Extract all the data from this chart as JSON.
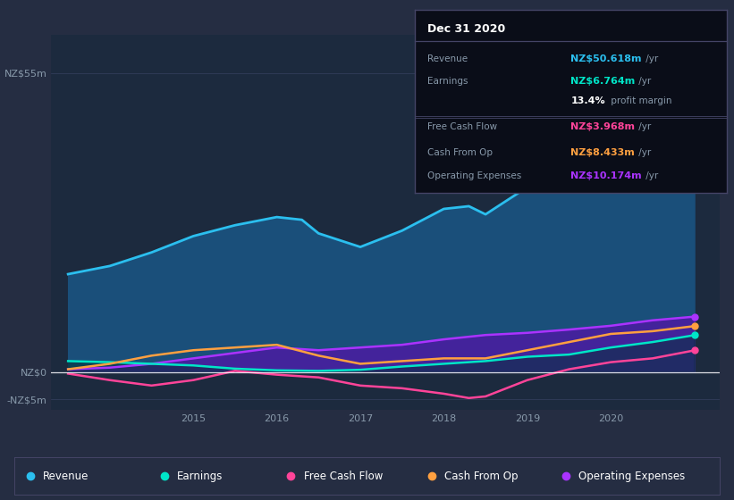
{
  "fig_bg_color": "#252d42",
  "plot_bg_color": "#1c2a3e",
  "ylim": [
    -7,
    62
  ],
  "yticks_vals": [
    -5,
    0,
    55
  ],
  "ytick_labels": [
    "-NZ$5m",
    "NZ$0",
    "NZ$55m"
  ],
  "xticks": [
    2015,
    2016,
    2017,
    2018,
    2019,
    2020
  ],
  "xlim": [
    2013.3,
    2021.3
  ],
  "revenue": {
    "color": "#2bbfef",
    "fill": "#1a4f7a",
    "x": [
      2013.5,
      2014.0,
      2014.5,
      2015.0,
      2015.5,
      2016.0,
      2016.3,
      2016.5,
      2017.0,
      2017.5,
      2018.0,
      2018.3,
      2018.5,
      2019.0,
      2019.5,
      2020.0,
      2020.5,
      2021.0
    ],
    "y": [
      18,
      19.5,
      22,
      25,
      27,
      28.5,
      28,
      25.5,
      23,
      26,
      30,
      30.5,
      29,
      34,
      39,
      44,
      47.5,
      50.6
    ]
  },
  "earnings": {
    "color": "#00e5c8",
    "x": [
      2013.5,
      2014.0,
      2014.5,
      2015.0,
      2015.5,
      2016.0,
      2016.5,
      2017.0,
      2017.5,
      2018.0,
      2018.5,
      2019.0,
      2019.5,
      2020.0,
      2020.5,
      2021.0
    ],
    "y": [
      2.0,
      1.8,
      1.5,
      1.2,
      0.6,
      0.3,
      0.2,
      0.4,
      1.0,
      1.5,
      2.0,
      2.8,
      3.2,
      4.5,
      5.5,
      6.764
    ]
  },
  "free_cash_flow": {
    "color": "#ff4499",
    "x": [
      2013.5,
      2014.0,
      2014.5,
      2015.0,
      2015.5,
      2016.0,
      2016.5,
      2017.0,
      2017.5,
      2018.0,
      2018.3,
      2018.5,
      2019.0,
      2019.5,
      2020.0,
      2020.5,
      2021.0
    ],
    "y": [
      -0.3,
      -1.5,
      -2.5,
      -1.5,
      0.2,
      -0.5,
      -1.0,
      -2.5,
      -3.0,
      -4.0,
      -4.8,
      -4.5,
      -1.5,
      0.5,
      1.8,
      2.5,
      3.968
    ]
  },
  "cash_from_op": {
    "color": "#ffa040",
    "x": [
      2013.5,
      2014.0,
      2014.5,
      2015.0,
      2015.5,
      2016.0,
      2016.5,
      2017.0,
      2017.5,
      2018.0,
      2018.5,
      2019.0,
      2019.5,
      2020.0,
      2020.5,
      2021.0
    ],
    "y": [
      0.5,
      1.5,
      3.0,
      4.0,
      4.5,
      5.0,
      3.0,
      1.5,
      2.0,
      2.5,
      2.5,
      4.0,
      5.5,
      7.0,
      7.5,
      8.433
    ]
  },
  "operating_expenses": {
    "color": "#aa33ff",
    "fill": "#5511aa",
    "x": [
      2013.5,
      2014.0,
      2014.5,
      2015.0,
      2015.5,
      2016.0,
      2016.5,
      2017.0,
      2017.5,
      2018.0,
      2018.5,
      2019.0,
      2019.5,
      2020.0,
      2020.5,
      2021.0
    ],
    "y": [
      0.5,
      0.8,
      1.5,
      2.5,
      3.5,
      4.5,
      4.0,
      4.5,
      5.0,
      6.0,
      6.8,
      7.2,
      7.8,
      8.5,
      9.5,
      10.174
    ]
  },
  "legend": [
    {
      "label": "Revenue",
      "color": "#2bbfef"
    },
    {
      "label": "Earnings",
      "color": "#00e5c8"
    },
    {
      "label": "Free Cash Flow",
      "color": "#ff4499"
    },
    {
      "label": "Cash From Op",
      "color": "#ffa040"
    },
    {
      "label": "Operating Expenses",
      "color": "#aa33ff"
    }
  ],
  "tooltip_bg": "#0a0d18",
  "tooltip_border": "#444466",
  "tooltip_title": "Dec 31 2020",
  "tooltip_rows": [
    {
      "label": "Revenue",
      "value": "NZ$50.618m",
      "unit": " /yr",
      "vcolor": "#2bbfef",
      "bold_val": true,
      "sep_after": false
    },
    {
      "label": "Earnings",
      "value": "NZ$6.764m",
      "unit": " /yr",
      "vcolor": "#00e5c8",
      "bold_val": true,
      "sep_after": false
    },
    {
      "label": "",
      "value": "13.4%",
      "unit": " profit margin",
      "vcolor": "#ffffff",
      "bold_val": true,
      "sep_after": true
    },
    {
      "label": "Free Cash Flow",
      "value": "NZ$3.968m",
      "unit": " /yr",
      "vcolor": "#ff4499",
      "bold_val": true,
      "sep_after": false
    },
    {
      "label": "Cash From Op",
      "value": "NZ$8.433m",
      "unit": " /yr",
      "vcolor": "#ffa040",
      "bold_val": true,
      "sep_after": false
    },
    {
      "label": "Operating Expenses",
      "value": "NZ$10.174m",
      "unit": " /yr",
      "vcolor": "#aa33ff",
      "bold_val": true,
      "sep_after": false
    }
  ]
}
